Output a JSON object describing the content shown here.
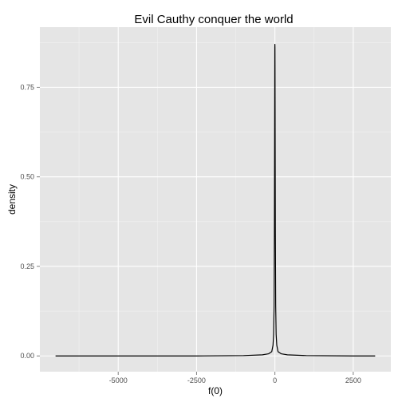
{
  "chart_data": {
    "type": "line",
    "title": "Evil Cauthy conquer the world",
    "xlabel": "f(0)",
    "ylabel": "density",
    "xlim": [
      -7500,
      3700
    ],
    "ylim": [
      -0.044,
      0.918
    ],
    "x_ticks": [
      -5000,
      -2500,
      0,
      2500
    ],
    "x_tick_labels": [
      "-5000",
      "-2500",
      "0",
      "2500"
    ],
    "y_ticks": [
      0,
      0.25,
      0.5,
      0.75
    ],
    "y_tick_labels": [
      "0.00",
      "0.25",
      "0.50",
      "0.75"
    ],
    "grid": true,
    "legend": "none",
    "colors": {
      "panel": "#e5e5e5",
      "grid_major": "#ffffff",
      "grid_minor": "#f2f2f2",
      "line": "#000000"
    },
    "series": [
      {
        "x": [
          -7000,
          -5000,
          -2500,
          -1000,
          -400,
          -200,
          -100,
          -60,
          -40,
          -25,
          -15,
          -8,
          -4,
          -2,
          0,
          2,
          4,
          8,
          15,
          25,
          40,
          60,
          100,
          200,
          400,
          1000,
          2500,
          3200
        ],
        "y": [
          0.0,
          0.0,
          0.0,
          0.001,
          0.003,
          0.006,
          0.012,
          0.03,
          0.06,
          0.14,
          0.34,
          0.62,
          0.8,
          0.86,
          0.87,
          0.86,
          0.8,
          0.62,
          0.34,
          0.14,
          0.06,
          0.03,
          0.012,
          0.006,
          0.003,
          0.001,
          0.0,
          0.0
        ]
      }
    ]
  }
}
